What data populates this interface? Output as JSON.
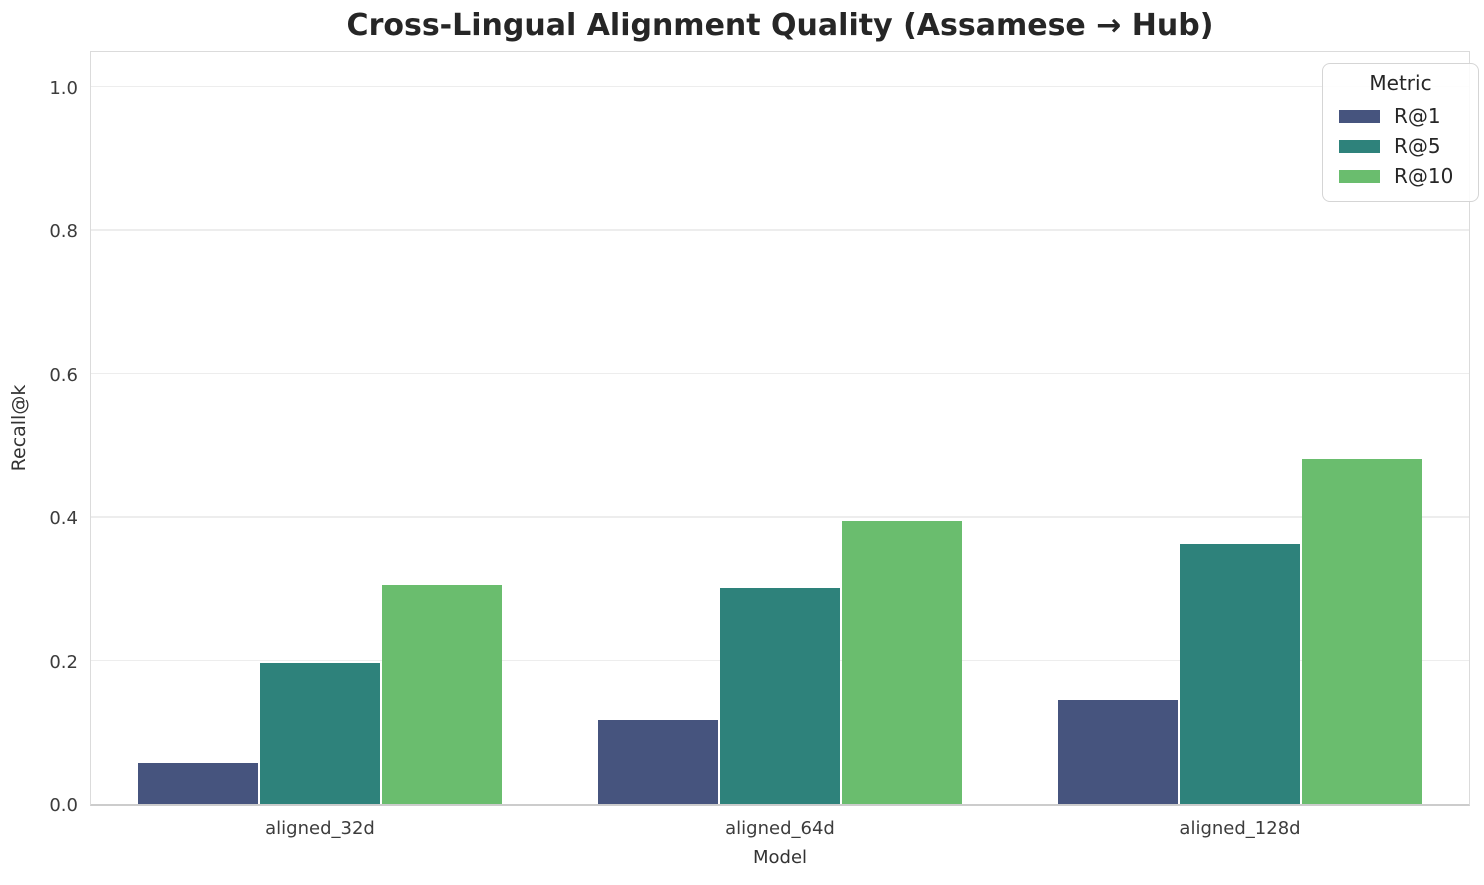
{
  "chart_data": {
    "type": "bar",
    "title": "Cross-Lingual Alignment Quality (Assamese → Hub)",
    "xlabel": "Model",
    "ylabel": "Recall@k",
    "categories": [
      "aligned_32d",
      "aligned_64d",
      "aligned_128d"
    ],
    "series": [
      {
        "name": "R@1",
        "color": "#46547e",
        "values": [
          0.057,
          0.117,
          0.145
        ]
      },
      {
        "name": "R@5",
        "color": "#2e827b",
        "values": [
          0.197,
          0.301,
          0.363
        ]
      },
      {
        "name": "R@10",
        "color": "#6abd6e",
        "values": [
          0.305,
          0.395,
          0.481
        ]
      }
    ],
    "ylim": [
      0,
      1.05
    ],
    "yticks": [
      0.0,
      0.2,
      0.4,
      0.6,
      0.8,
      1.0
    ],
    "ytick_labels": [
      "0.0",
      "0.2",
      "0.4",
      "0.6",
      "0.8",
      "1.0"
    ],
    "grid": true,
    "legend": {
      "title": "Metric",
      "position": "upper right"
    },
    "colors": {
      "grid": "#ededed",
      "spine": "#dbdbdb",
      "bottom_spine": "#cccccc",
      "title_text": "#262626",
      "tick_text": "#3c3c3c"
    }
  }
}
